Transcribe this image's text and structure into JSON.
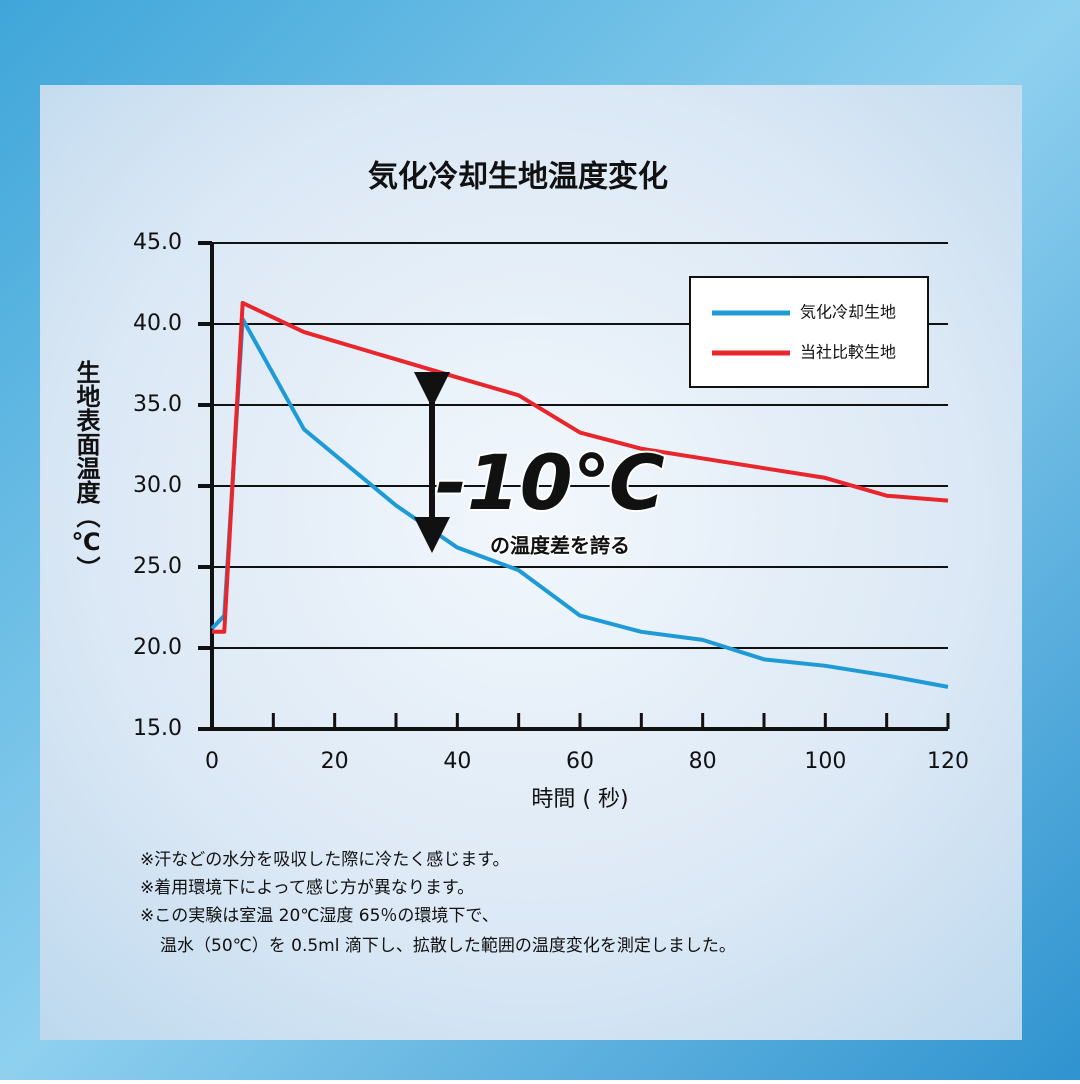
{
  "chart_data": {
    "type": "line",
    "title": "気化冷却生地温度変化",
    "xlabel": "時間 ( 秒)",
    "ylabel": "生地表面温度（℃）",
    "xlim": [
      0,
      120
    ],
    "xticks": [
      0,
      20,
      40,
      60,
      80,
      100,
      120
    ],
    "ylim": [
      15,
      45
    ],
    "yticks": [
      {
        "value": 15,
        "label": "15.0"
      },
      {
        "value": 20,
        "label": "20.0"
      },
      {
        "value": 25,
        "label": "25.0"
      },
      {
        "value": 30,
        "label": "30.0"
      },
      {
        "value": 35,
        "label": "35.0"
      },
      {
        "value": 40,
        "label": "40.0"
      },
      {
        "value": 45,
        "label": "45.0"
      }
    ],
    "grid": true,
    "legend": "upper right",
    "series": [
      {
        "name": "気化冷却生地",
        "color": "#1e9bd7",
        "x": [
          0,
          2,
          5,
          15,
          30,
          40,
          50,
          60,
          70,
          80,
          90,
          100,
          110,
          120
        ],
        "values": [
          21.2,
          22,
          40.3,
          33.5,
          28.8,
          26.2,
          24.8,
          22,
          21,
          20.5,
          19.3,
          18.9,
          18.3,
          17.6
        ]
      },
      {
        "name": "当社比較生地",
        "color": "#e8262c",
        "x": [
          0,
          2,
          5,
          15,
          40,
          50,
          60,
          70,
          80,
          90,
          100,
          110,
          120
        ],
        "values": [
          21,
          21,
          41.3,
          39.5,
          36.7,
          35.6,
          33.3,
          32.3,
          31.7,
          31.1,
          30.5,
          29.4,
          29.1
        ]
      }
    ],
    "annotations": [
      "-10℃",
      "の温度差を誇る"
    ],
    "notes": [
      "※汗などの水分を吸収した際に冷たく感じます。",
      "※着用環境下によって感じ方が異なります。",
      "※この実験は室温 20℃湿度 65％の環境下で、",
      "温水（50℃）を 0.5ml 滴下し、拡散した範囲の温度変化を測定しました。"
    ]
  }
}
